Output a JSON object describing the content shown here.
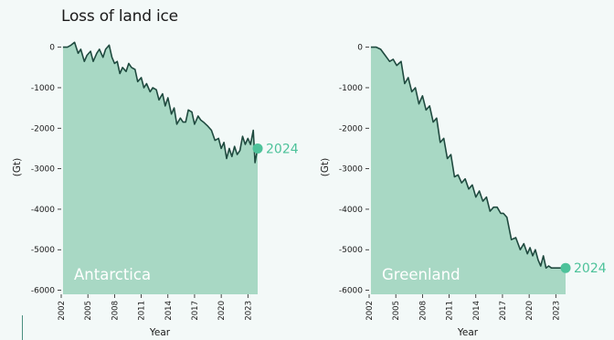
{
  "title": "Loss of land ice",
  "colors": {
    "fill": "#a8d8c4",
    "line": "#1f4a3f",
    "marker": "#4dc29a",
    "background": "#f3f9f8"
  },
  "chart_data": [
    {
      "type": "area",
      "region_label": "Antarctica",
      "ylabel": "(Gt)",
      "xlabel": "Year",
      "ylim": [
        -6100,
        150
      ],
      "xlim": [
        2002,
        2024.2
      ],
      "y_ticks": [
        0,
        -1000,
        -2000,
        -3000,
        -4000,
        -5000,
        -6000
      ],
      "y_tick_labels": [
        "0",
        "-1000",
        "-2000",
        "-3000",
        "-4000",
        "-5000",
        "-6000"
      ],
      "x_ticks": [
        2002,
        2005,
        2008,
        2011,
        2014,
        2017,
        2020,
        2023
      ],
      "x_tick_labels": [
        "2002",
        "2005",
        "2008",
        "2011",
        "2014",
        "2017",
        "2020",
        "2023"
      ],
      "end_label": "2024",
      "end_point": {
        "x": 2024.1,
        "y": -2500
      },
      "series": [
        {
          "x": [
            2002.2,
            2002.7,
            2003.1,
            2003.5,
            2003.9,
            2004.2,
            2004.6,
            2004.9,
            2005.3,
            2005.6,
            2006.0,
            2006.3,
            2006.7,
            2007.0,
            2007.4,
            2007.7,
            2008.0,
            2008.3,
            2008.6,
            2008.9,
            2009.3,
            2009.6,
            2009.9,
            2010.3,
            2010.6,
            2011.0,
            2011.3,
            2011.6,
            2012.0,
            2012.3,
            2012.7,
            2013.0,
            2013.4,
            2013.7,
            2014.0,
            2014.4,
            2014.7,
            2015.0,
            2015.4,
            2015.7,
            2016.0,
            2016.3,
            2016.7,
            2017.0,
            2017.4,
            2017.7,
            2018.0,
            2018.5,
            2018.9,
            2019.3,
            2019.7,
            2020.0,
            2020.3,
            2020.6,
            2020.9,
            2021.2,
            2021.5,
            2021.8,
            2022.1,
            2022.4,
            2022.7,
            2023.0,
            2023.3,
            2023.6,
            2023.8,
            2024.0,
            2024.1
          ],
          "y": [
            0,
            0,
            50,
            120,
            -150,
            -50,
            -350,
            -200,
            -100,
            -350,
            -150,
            -50,
            -250,
            -50,
            50,
            -250,
            -400,
            -350,
            -650,
            -500,
            -600,
            -400,
            -500,
            -550,
            -850,
            -750,
            -1000,
            -900,
            -1100,
            -1000,
            -1050,
            -1300,
            -1150,
            -1450,
            -1250,
            -1650,
            -1500,
            -1900,
            -1750,
            -1850,
            -1850,
            -1550,
            -1600,
            -1900,
            -1700,
            -1800,
            -1850,
            -1950,
            -2050,
            -2300,
            -2250,
            -2500,
            -2350,
            -2750,
            -2500,
            -2700,
            -2450,
            -2650,
            -2550,
            -2200,
            -2400,
            -2250,
            -2400,
            -2050,
            -2850,
            -2600,
            -2500
          ]
        }
      ]
    },
    {
      "type": "area",
      "region_label": "Greenland",
      "ylabel": "(Gt)",
      "xlabel": "Year",
      "ylim": [
        -6100,
        150
      ],
      "xlim": [
        2002,
        2024.2
      ],
      "y_ticks": [
        0,
        -1000,
        -2000,
        -3000,
        -4000,
        -5000,
        -6000
      ],
      "y_tick_labels": [
        "0",
        "-1000",
        "-2000",
        "-3000",
        "-4000",
        "-5000",
        "-6000"
      ],
      "x_ticks": [
        2002,
        2005,
        2008,
        2011,
        2014,
        2017,
        2020,
        2023
      ],
      "x_tick_labels": [
        "2002",
        "2005",
        "2008",
        "2011",
        "2014",
        "2017",
        "2020",
        "2023"
      ],
      "end_label": "2024",
      "end_point": {
        "x": 2024.1,
        "y": -5450
      },
      "series": [
        {
          "x": [
            2002.2,
            2002.8,
            2003.3,
            2003.8,
            2004.3,
            2004.7,
            2005.1,
            2005.6,
            2006.0,
            2006.4,
            2006.8,
            2007.2,
            2007.6,
            2008.0,
            2008.4,
            2008.8,
            2009.2,
            2009.6,
            2010.0,
            2010.4,
            2010.8,
            2011.2,
            2011.6,
            2012.0,
            2012.4,
            2012.8,
            2013.2,
            2013.6,
            2014.0,
            2014.4,
            2014.8,
            2015.2,
            2015.6,
            2016.0,
            2016.4,
            2016.8,
            2017.1,
            2017.5,
            2018.0,
            2018.5,
            2019.0,
            2019.4,
            2019.8,
            2020.1,
            2020.4,
            2020.7,
            2021.0,
            2021.3,
            2021.6,
            2021.9,
            2022.2,
            2022.5,
            2022.8,
            2023.0,
            2023.3,
            2023.6,
            2023.8,
            2024.1
          ],
          "y": [
            0,
            0,
            -50,
            -200,
            -350,
            -300,
            -450,
            -350,
            -900,
            -750,
            -1100,
            -1000,
            -1400,
            -1200,
            -1550,
            -1450,
            -1850,
            -1750,
            -2350,
            -2250,
            -2750,
            -2650,
            -3200,
            -3150,
            -3350,
            -3250,
            -3500,
            -3400,
            -3700,
            -3550,
            -3800,
            -3700,
            -4050,
            -3950,
            -3950,
            -4100,
            -4100,
            -4200,
            -4750,
            -4700,
            -5000,
            -4850,
            -5100,
            -4950,
            -5150,
            -5000,
            -5250,
            -5400,
            -5150,
            -5450,
            -5400,
            -5450,
            -5450,
            -5450,
            -5450,
            -5450,
            -5450,
            -5450
          ]
        }
      ]
    }
  ]
}
